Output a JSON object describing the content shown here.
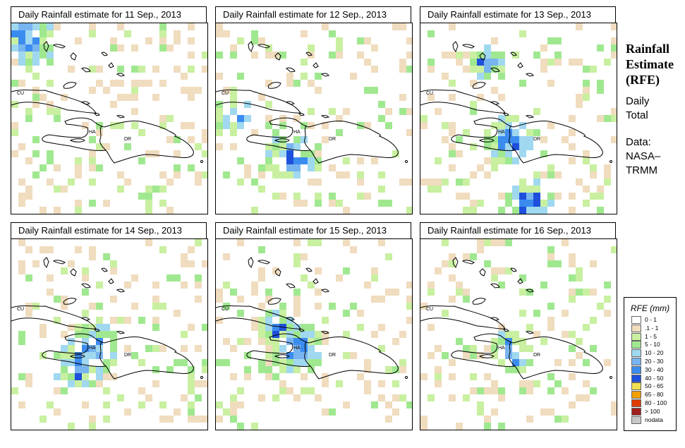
{
  "panels": [
    {
      "title": "Daily Rainfall estimate for  11 Sep., 2013"
    },
    {
      "title": "Daily Rainfall estimate for  12 Sep., 2013"
    },
    {
      "title": "Daily Rainfall estimate for  13 Sep., 2013"
    },
    {
      "title": "Daily Rainfall estimate for  14 Sep., 2013"
    },
    {
      "title": "Daily Rainfall estimate for  15 Sep., 2013"
    },
    {
      "title": "Daily Rainfall estimate for  16 Sep., 2013"
    }
  ],
  "map_labels": {
    "cuba": "CU",
    "haiti": "HA",
    "dominican_republic": "DR"
  },
  "side": {
    "heading_line1": "Rainfall",
    "heading_line2": "Estimate",
    "heading_line3": "(RFE)",
    "desc_line1": "Daily",
    "desc_line2": "Total",
    "data_line1": "Data:",
    "data_line2": "NASA–",
    "data_line3": "TRMM"
  },
  "legend": {
    "title": "RFE (mm)",
    "items": [
      {
        "label": "0 - 1",
        "color": "#ffffff"
      },
      {
        "label": ".1 - 1",
        "color": "#f0dcbe"
      },
      {
        "label": "1 - 5",
        "color": "#c8f0a0"
      },
      {
        "label": "5 - 10",
        "color": "#a0e890"
      },
      {
        "label": "10 - 20",
        "color": "#a0d8f0"
      },
      {
        "label": "20 - 30",
        "color": "#78b4f0"
      },
      {
        "label": "30 - 40",
        "color": "#3c8cf0"
      },
      {
        "label": "40 - 50",
        "color": "#1e50dc"
      },
      {
        "label": "50 - 65",
        "color": "#f0e050"
      },
      {
        "label": "65 - 80",
        "color": "#f0a000"
      },
      {
        "label": "80 - 100",
        "color": "#e03c00"
      },
      {
        "label": "> 100",
        "color": "#a01e1e"
      },
      {
        "label": "nodata",
        "color": "#c8c8c8"
      }
    ]
  }
}
